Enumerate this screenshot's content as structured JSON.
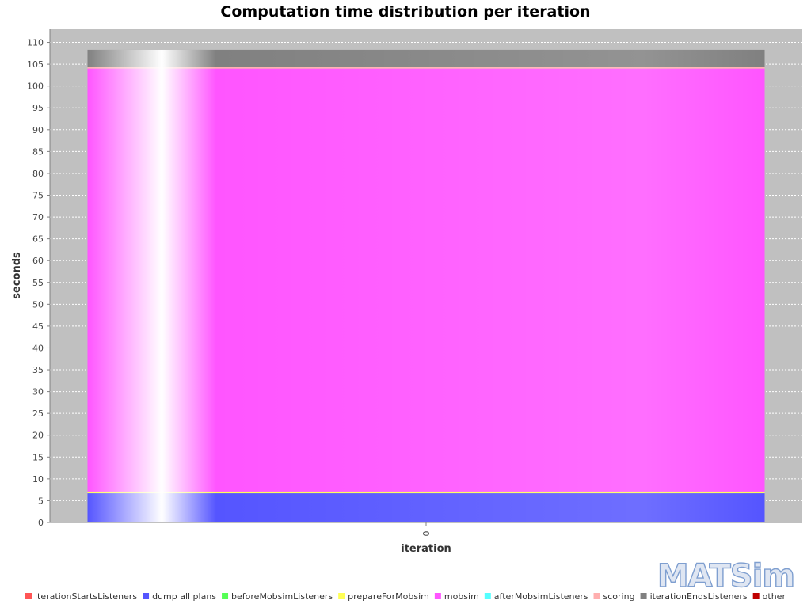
{
  "chart_data": {
    "type": "bar",
    "stacked": true,
    "title": "Computation time distribution per iteration",
    "xlabel": "iteration",
    "ylabel": "seconds",
    "categories": [
      "0"
    ],
    "ylim": [
      0,
      113
    ],
    "yticks": [
      0,
      5,
      10,
      15,
      20,
      25,
      30,
      35,
      40,
      45,
      50,
      55,
      60,
      65,
      70,
      75,
      80,
      85,
      90,
      95,
      100,
      105,
      110
    ],
    "grid": true,
    "legend_placement": "bottom",
    "series": [
      {
        "name": "iterationStartsListeners",
        "color": "#ff5555",
        "values": [
          0.0
        ]
      },
      {
        "name": "dump all plans",
        "color": "#5555ff",
        "values": [
          6.7
        ]
      },
      {
        "name": "beforeMobsimListeners",
        "color": "#55ff55",
        "values": [
          0.0
        ]
      },
      {
        "name": "prepareForMobsim",
        "color": "#ffff55",
        "values": [
          0.4
        ]
      },
      {
        "name": "mobsim",
        "color": "#ff55ff",
        "values": [
          96.9
        ]
      },
      {
        "name": "afterMobsimListeners",
        "color": "#55ffff",
        "values": [
          0.0
        ]
      },
      {
        "name": "scoring",
        "color": "#ffafaf",
        "values": [
          0.3
        ]
      },
      {
        "name": "iterationEndsListeners",
        "color": "#808080",
        "values": [
          4.0
        ]
      },
      {
        "name": "other",
        "color": "#c00000",
        "values": [
          0.0
        ]
      }
    ]
  },
  "logo": {
    "text": "MATSim"
  }
}
